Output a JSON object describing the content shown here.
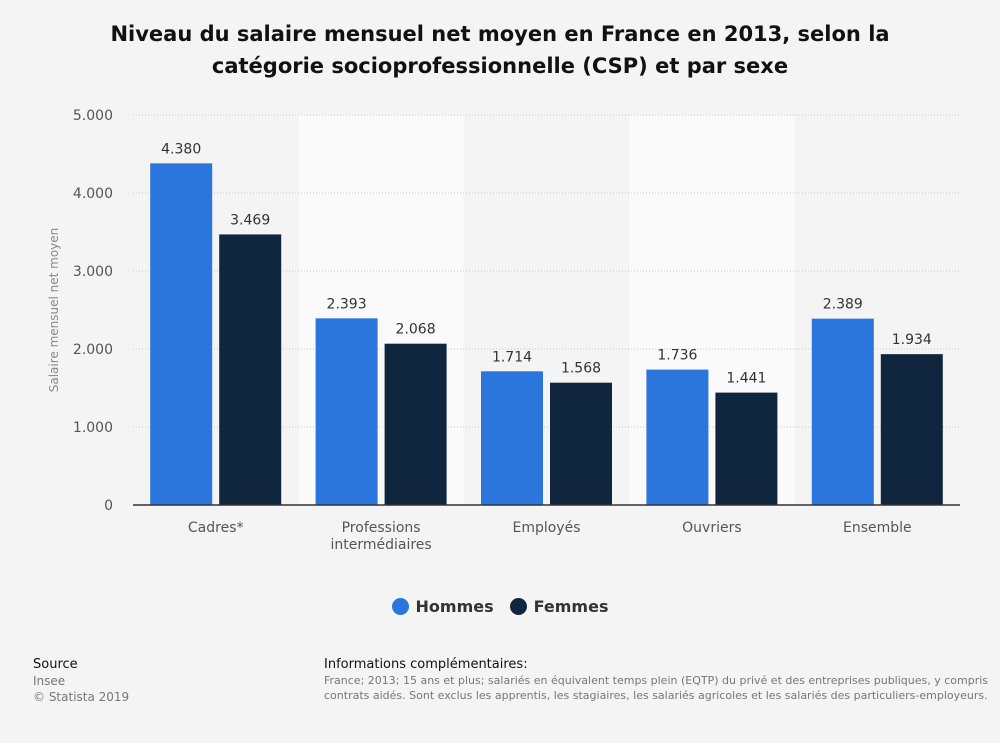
{
  "chart_data": {
    "type": "bar",
    "title_line1": "Niveau du salaire mensuel net moyen en France en 2013, selon la",
    "title_line2": "catégorie socioprofessionnelle (CSP) et par sexe",
    "ylabel": "Salaire mensuel net moyen",
    "ylim": [
      0,
      5000
    ],
    "yticks": [
      {
        "value": 0,
        "label": "0"
      },
      {
        "value": 1000,
        "label": "1.000"
      },
      {
        "value": 2000,
        "label": "2.000"
      },
      {
        "value": 3000,
        "label": "3.000"
      },
      {
        "value": 4000,
        "label": "4.000"
      },
      {
        "value": 5000,
        "label": "5.000"
      }
    ],
    "categories": [
      [
        "Cadres*"
      ],
      [
        "Professions",
        "intermédiaires"
      ],
      [
        "Employés"
      ],
      [
        "Ouvriers"
      ],
      [
        "Ensemble"
      ]
    ],
    "series": [
      {
        "name": "Hommes",
        "color": "#2a76dd",
        "values": [
          4380,
          2393,
          1714,
          1736,
          2389
        ],
        "labels": [
          "4.380",
          "2.393",
          "1.714",
          "1.736",
          "2.389"
        ]
      },
      {
        "name": "Femmes",
        "color": "#10263f",
        "values": [
          3469,
          2068,
          1568,
          1441,
          1934
        ],
        "labels": [
          "3.469",
          "2.068",
          "1.568",
          "1.441",
          "1.934"
        ]
      }
    ],
    "grid": true,
    "legend_position": "bottom"
  },
  "footer": {
    "source_heading": "Source",
    "source_name": "Insee",
    "copyright": "© Statista 2019",
    "info_heading": "Informations complémentaires:",
    "info_line1": "France; 2013; 15 ans et plus; salariés en équivalent temps plein (EQTP) du privé et des entreprises publiques, y compris",
    "info_line2": "contrats aidés. Sont exclus les apprentis, les stagiaires, les salariés agricoles et les salariés des particuliers-employeurs."
  }
}
